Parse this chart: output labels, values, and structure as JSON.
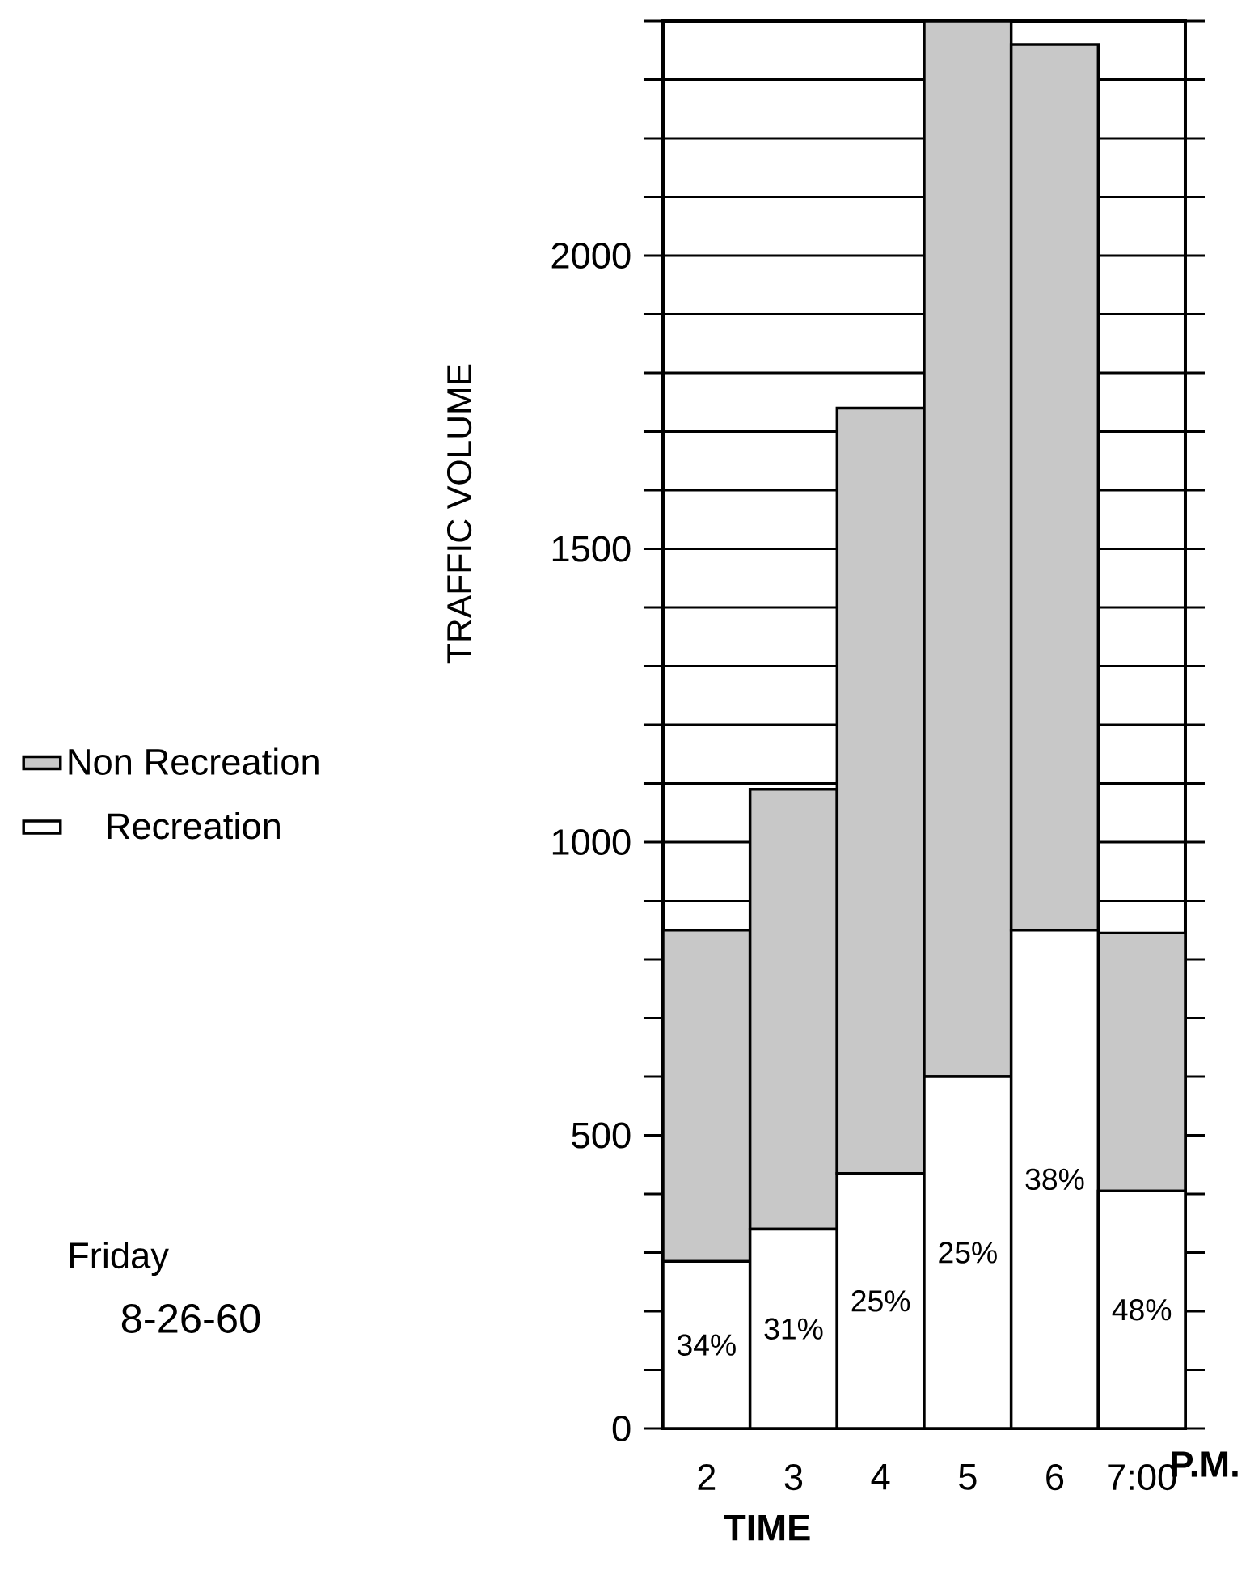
{
  "chart_data": {
    "type": "bar",
    "stacked": true,
    "xlabel": "TIME",
    "ylabel": "TRAFFIC VOLUME",
    "categories": [
      "2",
      "3",
      "4",
      "5",
      "6",
      "7:00"
    ],
    "series": [
      {
        "name": "Recreation",
        "color": "#ffffff",
        "values": [
          285,
          340,
          435,
          600,
          850,
          405
        ]
      },
      {
        "name": "Non Recreation",
        "color": "#c8c8c8",
        "values": [
          565,
          750,
          1305,
          1800,
          1510,
          440
        ]
      }
    ],
    "ylim": [
      0,
      2400
    ],
    "yticks": [
      0,
      {
        "value": 100,
        "label": null
      },
      {
        "value": 200,
        "label": null
      },
      {
        "value": 300,
        "label": null
      },
      {
        "value": 400,
        "label": null
      },
      500,
      {
        "value": 600,
        "label": null
      },
      {
        "value": 700,
        "label": null
      },
      {
        "value": 800,
        "label": null
      },
      {
        "value": 900,
        "label": null
      },
      1000,
      {
        "value": 1100,
        "label": null
      },
      {
        "value": 1200,
        "label": null
      },
      {
        "value": 1300,
        "label": null
      },
      {
        "value": 1400,
        "label": null
      },
      1500,
      {
        "value": 1600,
        "label": null
      },
      {
        "value": 1700,
        "label": null
      },
      {
        "value": 1800,
        "label": null
      },
      {
        "value": 1900,
        "label": null
      },
      2000,
      {
        "value": 2100,
        "label": null
      },
      {
        "value": 2200,
        "label": null
      },
      {
        "value": 2300,
        "label": null
      },
      {
        "value": 2400,
        "label": null
      }
    ],
    "grid": "y",
    "legend": "left",
    "annotations": [
      "P.M.",
      "Friday",
      "8-26-60",
      "34%",
      "31%",
      "25%",
      "25%",
      "38%",
      "48%"
    ]
  }
}
